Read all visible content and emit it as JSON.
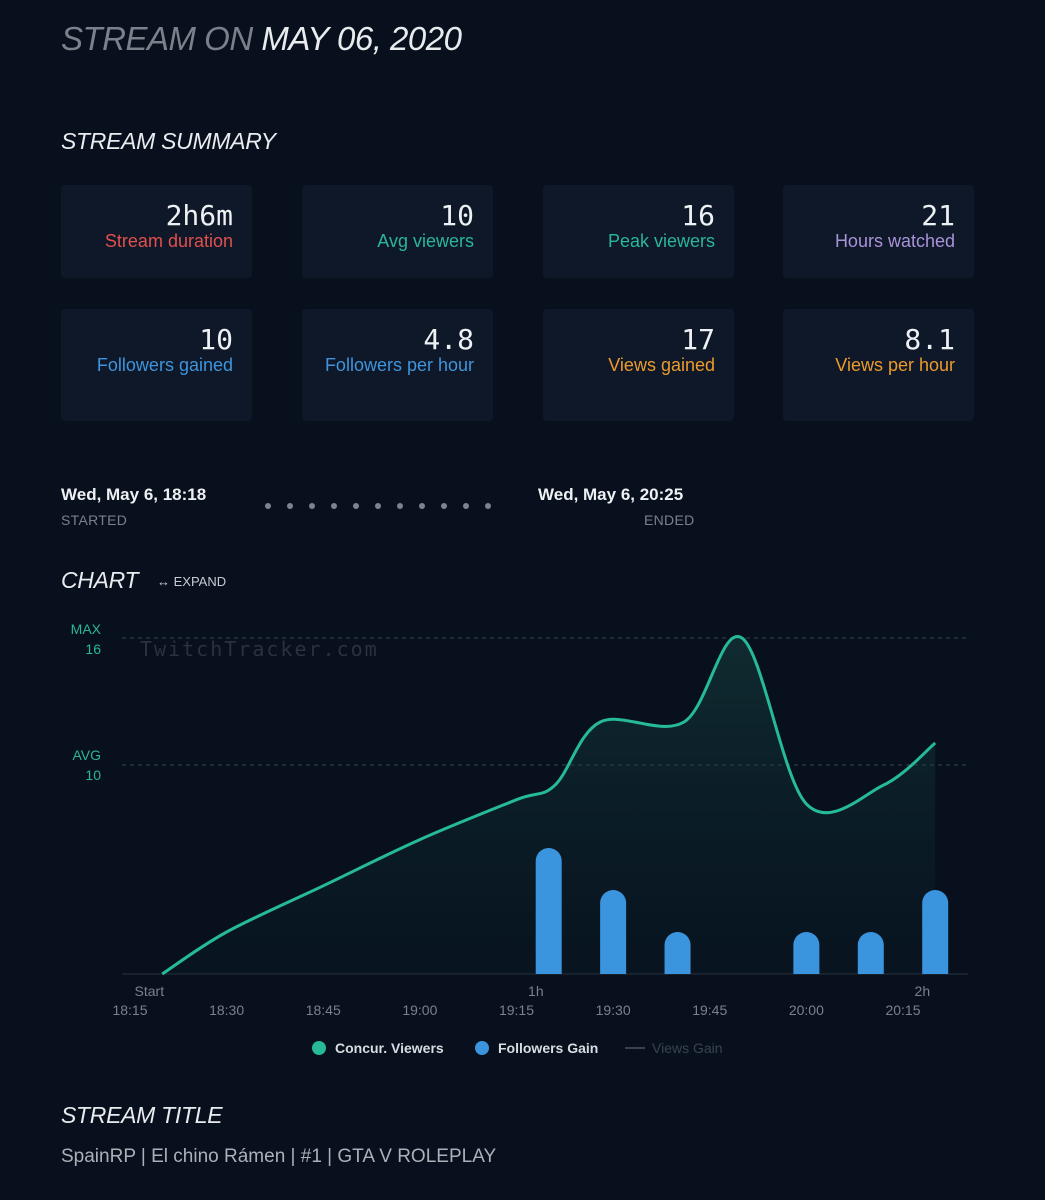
{
  "header": {
    "prefix": "STREAM ON",
    "date": "MAY 06, 2020"
  },
  "summary": {
    "heading": "STREAM SUMMARY",
    "cards": [
      {
        "value": "2h6m",
        "label": "Stream duration",
        "color": "#e2504d"
      },
      {
        "value": "10",
        "label": "Avg viewers",
        "color": "#2bb69a"
      },
      {
        "value": "16",
        "label": "Peak viewers",
        "color": "#2bb69a"
      },
      {
        "value": "21",
        "label": "Hours watched",
        "color": "#a993d8"
      },
      {
        "value": "10",
        "label": "Followers gained",
        "color": "#3f94dc"
      },
      {
        "value": "4.8",
        "label": "Followers per hour",
        "color": "#3f94dc"
      },
      {
        "value": "17",
        "label": "Views gained",
        "color": "#eb9a2b"
      },
      {
        "value": "8.1",
        "label": "Views per hour",
        "color": "#eb9a2b"
      }
    ]
  },
  "timeline": {
    "started": "Wed, May 6, 18:18",
    "started_label": "STARTED",
    "ended": "Wed, May 6, 20:25",
    "ended_label": "ENDED"
  },
  "chart_section": {
    "heading": "CHART",
    "expand_label": "EXPAND",
    "expand_icon": "double-arrow-icon"
  },
  "chart_data": {
    "type": "line",
    "watermark": "TwitchTracker.com",
    "max_label": "MAX",
    "max_value": "16",
    "avg_label": "AVG",
    "avg_value": "10",
    "ylim": [
      0,
      16
    ],
    "x_ticks_top": [
      "Start",
      "1h",
      "2h"
    ],
    "x_ticks_bottom": [
      "18:15",
      "18:30",
      "18:45",
      "19:00",
      "19:15",
      "19:30",
      "19:45",
      "20:00",
      "20:15"
    ],
    "series": [
      {
        "name": "Concur. Viewers",
        "color": "#26b99a",
        "x": [
          "18:20",
          "18:30",
          "18:45",
          "19:00",
          "19:15",
          "19:21",
          "19:28",
          "19:41",
          "19:50",
          "20:00",
          "20:12",
          "20:20"
        ],
        "values": [
          0,
          2,
          4.2,
          6.4,
          8.3,
          9,
          12,
          12,
          16,
          8.1,
          9,
          11
        ]
      },
      {
        "name": "Followers Gain",
        "color": "#3b94de",
        "x": [
          "19:20",
          "19:30",
          "19:40",
          "20:00",
          "20:10",
          "20:20"
        ],
        "values": [
          6,
          4,
          2,
          2,
          2,
          4
        ]
      },
      {
        "name": "Views Gain",
        "color": "#3a4250",
        "x": [],
        "values": []
      }
    ]
  },
  "stream_title": {
    "heading": "STREAM TITLE",
    "text": "SpainRP | El chino Rámen | #1 | GTA V ROLEPLAY"
  }
}
